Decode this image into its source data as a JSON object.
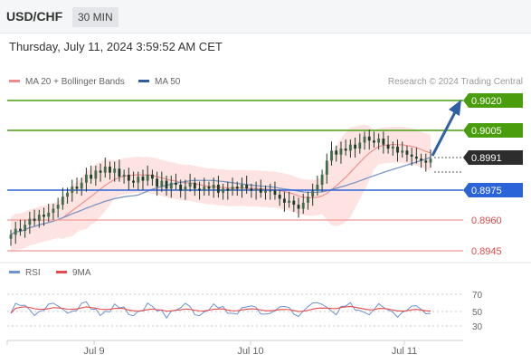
{
  "header": {
    "symbol": "USD/CHF",
    "timeframe": "30 MIN",
    "timestamp": "Thursday, July 11, 2024 3:59:52 AM CET"
  },
  "legend": {
    "items": [
      {
        "label": "MA 20 + Bollinger Bands",
        "color": "#f28b8b"
      },
      {
        "label": "MA 50",
        "color": "#2f5d9c"
      }
    ],
    "credit": "Research © 2024 Trading Central"
  },
  "colors": {
    "resistance": "#4a9e0e",
    "pivot": "#2b63d9",
    "support": "#f29a9a",
    "candle": "#1f3b2a",
    "bollinger_fill": "#fde0de",
    "ma20": "#f08b8b",
    "ma50": "#7d95c4",
    "arrow": "#2f5fa5",
    "rsi": "#6b93d6",
    "rsi_ma": "#e64b4b"
  },
  "price_levels": [
    {
      "value": "0.9020",
      "kind": "resistance"
    },
    {
      "value": "0.9005",
      "kind": "resistance"
    },
    {
      "value": "0.8991",
      "kind": "current"
    },
    {
      "value": "0.8975",
      "kind": "pivot"
    },
    {
      "value": "0.8960",
      "kind": "support"
    },
    {
      "value": "0.8945",
      "kind": "support"
    }
  ],
  "rsi_panel": {
    "legend": [
      {
        "label": "RSI",
        "color": "#6b93d6"
      },
      {
        "label": "9MA",
        "color": "#e64b4b"
      }
    ],
    "levels": [
      "70",
      "50",
      "30"
    ]
  },
  "x_axis": {
    "labels": [
      "Jul 9",
      "Jul 10",
      "Jul 11"
    ]
  },
  "chart_data": {
    "type": "candlestick",
    "instrument": "USD/CHF",
    "timeframe": "30 MIN",
    "y_range": [
      0.8938,
      0.9028
    ],
    "key_levels": [
      0.902,
      0.9005,
      0.8991,
      0.8975,
      0.896,
      0.8945
    ],
    "close_approx": [
      0.8953,
      0.8956,
      0.8955,
      0.8958,
      0.8961,
      0.896,
      0.8963,
      0.8962,
      0.8964,
      0.8966,
      0.8968,
      0.8972,
      0.8974,
      0.8977,
      0.8976,
      0.8979,
      0.8983,
      0.8981,
      0.8985,
      0.8984,
      0.8987,
      0.8984,
      0.8986,
      0.8982,
      0.8983,
      0.898,
      0.8979,
      0.8982,
      0.898,
      0.8983,
      0.8981,
      0.8977,
      0.898,
      0.8976,
      0.8979,
      0.8978,
      0.8975,
      0.8977,
      0.8979,
      0.8976,
      0.8975,
      0.8977,
      0.8976,
      0.8978,
      0.8974,
      0.8976,
      0.8975,
      0.8977,
      0.8976,
      0.8978,
      0.8976,
      0.8975,
      0.8976,
      0.8974,
      0.8975,
      0.8975,
      0.8973,
      0.8971,
      0.8969,
      0.897,
      0.8968,
      0.8966,
      0.8969,
      0.8972,
      0.8975,
      0.8978,
      0.8983,
      0.899,
      0.8995,
      0.8993,
      0.8996,
      0.8995,
      0.8998,
      0.8996,
      0.8999,
      0.9002,
      0.9,
      0.8999,
      0.9001,
      0.8998,
      0.8996,
      0.8997,
      0.8994,
      0.8995,
      0.8993,
      0.8992,
      0.8991,
      0.899,
      0.8989,
      0.8991
    ]
  }
}
